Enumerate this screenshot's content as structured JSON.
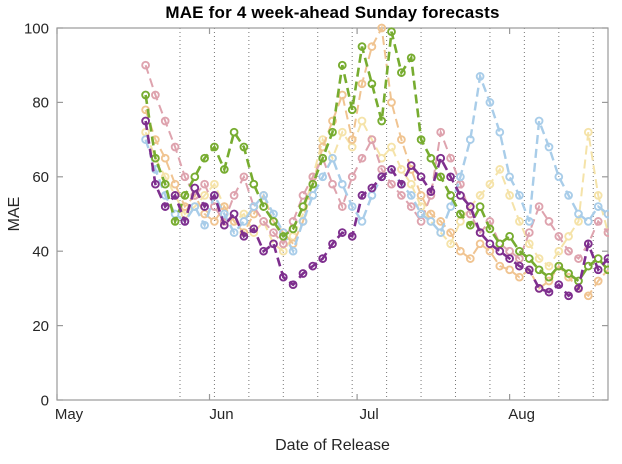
{
  "chart_data": {
    "type": "line",
    "title": "MAE for 4 week-ahead Sunday forecasts",
    "xlabel": "Date of Release",
    "ylabel": "MAE",
    "ylim": [
      0,
      100
    ],
    "yticks": [
      0,
      20,
      40,
      60,
      80,
      100
    ],
    "x_unit": "days_since_May_1",
    "xlim": [
      0,
      112
    ],
    "xticks": [
      {
        "day": 0,
        "label": "May"
      },
      {
        "day": 31,
        "label": "Jun"
      },
      {
        "day": 61,
        "label": "Jul"
      },
      {
        "day": 92,
        "label": "Aug"
      }
    ],
    "grid": "vertical-dotted-weekly",
    "gridline_days": [
      25,
      32,
      39,
      46,
      53,
      60,
      67,
      74,
      81,
      88,
      95,
      102,
      109
    ],
    "legend_position": "none",
    "line_style": "dashed",
    "marker": "open-circle",
    "axis_color": "#9a9a9a",
    "tick_label_color": "#262626",
    "x": [
      18,
      20,
      22,
      24,
      26,
      28,
      30,
      32,
      34,
      36,
      38,
      40,
      42,
      44,
      46,
      48,
      50,
      52,
      54,
      56,
      58,
      60,
      62,
      64,
      66,
      68,
      70,
      72,
      74,
      76,
      78,
      80,
      82,
      84,
      86,
      88,
      90,
      92,
      94,
      96,
      98,
      100,
      102,
      104,
      106,
      108,
      110,
      112
    ],
    "series": [
      {
        "name": "series-pale-yellow",
        "color": "#F5E3A9",
        "line_width": 2.0,
        "values": [
          72,
          65,
          60,
          55,
          50,
          52,
          55,
          58,
          52,
          48,
          50,
          45,
          48,
          42,
          40,
          44,
          50,
          60,
          70,
          65,
          72,
          68,
          75,
          70,
          65,
          68,
          62,
          58,
          52,
          48,
          45,
          42,
          48,
          52,
          55,
          58,
          62,
          55,
          48,
          42,
          38,
          36,
          40,
          44,
          48,
          72,
          55,
          45
        ]
      },
      {
        "name": "series-tan",
        "color": "#F0C491",
        "line_width": 2.0,
        "values": [
          78,
          70,
          65,
          58,
          52,
          55,
          50,
          48,
          52,
          48,
          45,
          50,
          55,
          48,
          45,
          42,
          48,
          58,
          68,
          75,
          82,
          70,
          85,
          95,
          100,
          80,
          70,
          62,
          55,
          50,
          48,
          45,
          40,
          38,
          42,
          40,
          36,
          35,
          33,
          35,
          30,
          32,
          36,
          33,
          30,
          28,
          32,
          35
        ]
      },
      {
        "name": "series-pink",
        "color": "#DEA3AE",
        "line_width": 2.0,
        "values": [
          90,
          82,
          75,
          68,
          60,
          55,
          58,
          52,
          48,
          55,
          60,
          52,
          48,
          45,
          42,
          48,
          55,
          60,
          65,
          58,
          52,
          60,
          65,
          70,
          62,
          58,
          55,
          52,
          48,
          55,
          72,
          65,
          58,
          50,
          45,
          48,
          42,
          40,
          38,
          45,
          52,
          48,
          44,
          40,
          38,
          42,
          48,
          45
        ]
      },
      {
        "name": "series-light-blue",
        "color": "#A9CDE9",
        "line_width": 2.4,
        "values": [
          70,
          62,
          55,
          50,
          48,
          52,
          47,
          55,
          50,
          45,
          48,
          52,
          55,
          50,
          45,
          40,
          48,
          55,
          60,
          65,
          58,
          52,
          48,
          55,
          60,
          62,
          58,
          55,
          50,
          48,
          45,
          52,
          60,
          70,
          87,
          80,
          72,
          60,
          55,
          48,
          75,
          68,
          60,
          55,
          50,
          48,
          52,
          50
        ]
      },
      {
        "name": "series-green",
        "color": "#77AC30",
        "line_width": 2.6,
        "values": [
          82,
          65,
          58,
          48,
          55,
          60,
          65,
          68,
          62,
          72,
          68,
          58,
          52,
          48,
          44,
          46,
          52,
          58,
          65,
          72,
          90,
          78,
          95,
          85,
          75,
          99,
          88,
          92,
          70,
          65,
          60,
          55,
          50,
          47,
          52,
          46,
          42,
          44,
          40,
          38,
          35,
          33,
          36,
          34,
          32,
          36,
          38,
          35
        ]
      },
      {
        "name": "series-purple",
        "color": "#7E2F8E",
        "line_width": 2.6,
        "values": [
          75,
          58,
          52,
          55,
          48,
          57,
          52,
          55,
          47,
          50,
          44,
          46,
          40,
          42,
          33,
          31,
          34,
          36,
          38,
          42,
          45,
          44,
          55,
          57,
          60,
          62,
          58,
          63,
          60,
          56,
          65,
          60,
          55,
          52,
          45,
          42,
          40,
          38,
          36,
          35,
          30,
          29,
          31,
          28,
          30,
          42,
          35,
          38
        ]
      }
    ]
  }
}
